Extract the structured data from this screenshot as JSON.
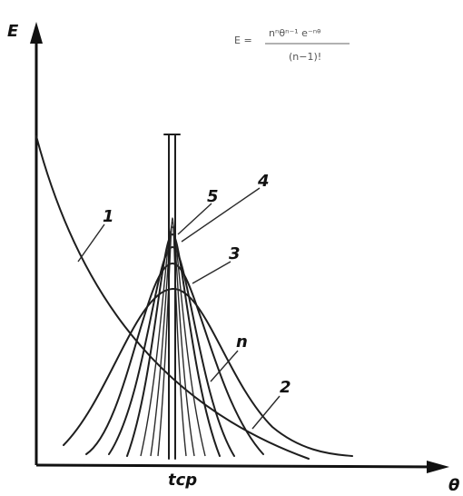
{
  "axes": {
    "y_label": "E",
    "x_label": "θ",
    "x_mark": "tср"
  },
  "formula": {
    "lhs": "E =",
    "numerator": "nⁿθⁿ⁻¹ e⁻ⁿᶿ",
    "denominator": "(n−1)!"
  },
  "curve_labels": [
    "1",
    "2",
    "3",
    "4",
    "5",
    "n"
  ]
}
